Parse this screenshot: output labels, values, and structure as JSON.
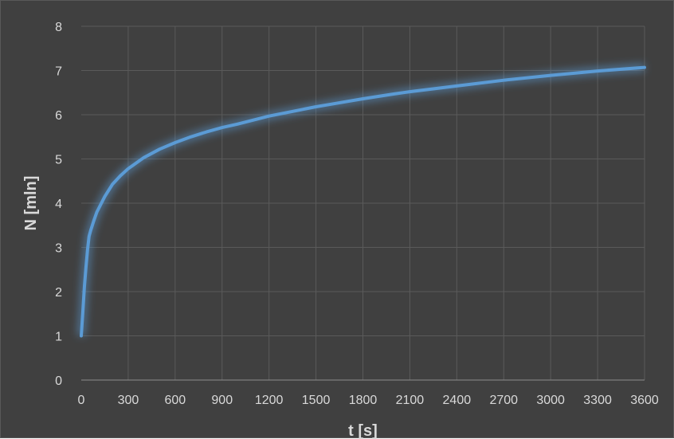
{
  "chart_data": {
    "type": "line",
    "title": "",
    "xlabel": "t [s]",
    "ylabel": "N [mln]",
    "xlim": [
      0,
      3600
    ],
    "ylim": [
      0,
      8
    ],
    "x_ticks": [
      "0",
      "300",
      "600",
      "900",
      "1200",
      "1500",
      "1800",
      "2100",
      "2400",
      "2700",
      "3000",
      "3300",
      "3600"
    ],
    "y_ticks": [
      "0",
      "1",
      "2",
      "3",
      "4",
      "5",
      "6",
      "7",
      "8"
    ],
    "grid": true,
    "legend": "none",
    "colors": {
      "background": "#404040",
      "line": "#5b9bd5",
      "glow": "#5b9bd5",
      "text": "#d9d9d9",
      "grid": "#5a5a5a"
    },
    "series": [
      {
        "x": [
          0,
          10,
          20,
          30,
          40,
          50,
          60,
          80,
          100,
          150,
          200,
          250,
          300,
          400,
          500,
          600,
          700,
          800,
          900,
          1000,
          1200,
          1400,
          1500,
          1600,
          1800,
          2000,
          2100,
          2400,
          2700,
          3000,
          3300,
          3600
        ],
        "y": [
          1.0,
          1.55,
          2.1,
          2.55,
          2.95,
          3.25,
          3.38,
          3.6,
          3.8,
          4.15,
          4.43,
          4.62,
          4.78,
          5.03,
          5.22,
          5.37,
          5.5,
          5.61,
          5.71,
          5.79,
          5.97,
          6.11,
          6.18,
          6.24,
          6.36,
          6.47,
          6.52,
          6.65,
          6.78,
          6.89,
          6.99,
          7.07
        ]
      }
    ]
  }
}
